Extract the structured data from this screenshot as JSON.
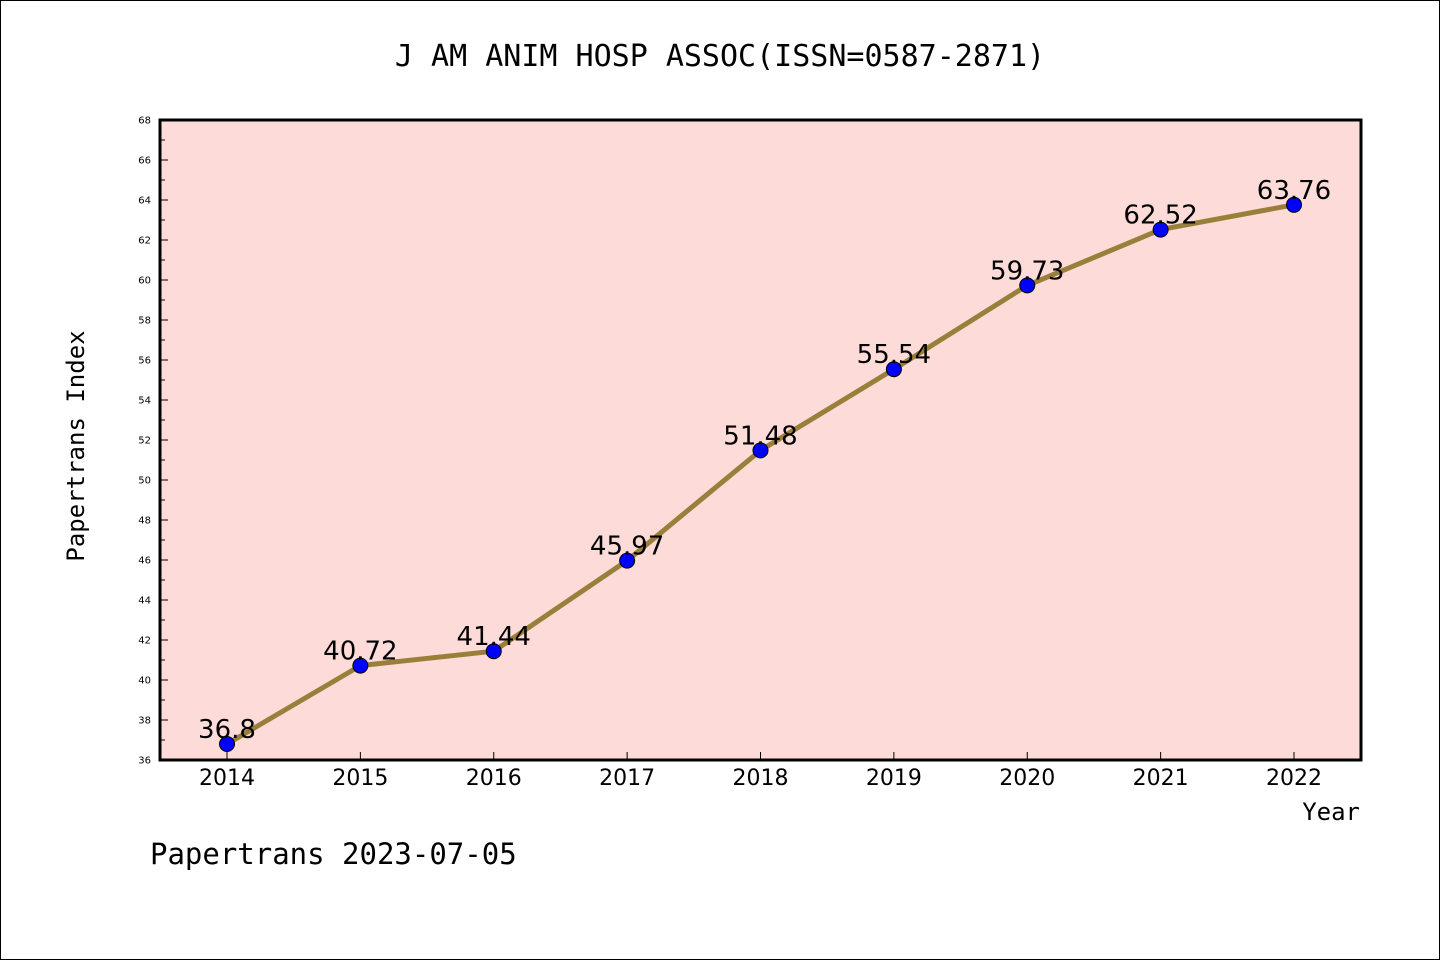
{
  "chart_data": {
    "type": "line",
    "title": "J AM ANIM HOSP ASSOC(ISSN=0587-2871)",
    "xlabel": "Year",
    "ylabel": "Papertrans Index",
    "categories": [
      "2014",
      "2015",
      "2016",
      "2017",
      "2018",
      "2019",
      "2020",
      "2021",
      "2022"
    ],
    "series": [
      {
        "values": [
          36.8,
          40.72,
          41.44,
          45.97,
          51.48,
          55.54,
          59.73,
          62.52,
          63.76
        ],
        "labels": [
          "36.8",
          "40.72",
          "41.44",
          "45.97",
          "51.48",
          "55.54",
          "59.73",
          "62.52",
          "63.76"
        ]
      }
    ],
    "ylim": [
      36,
      68
    ],
    "yticks": [
      "36",
      "38",
      "40",
      "42",
      "44",
      "46",
      "48",
      "50",
      "52",
      "54",
      "56",
      "58",
      "60",
      "62",
      "64",
      "66",
      "68"
    ],
    "grid": false,
    "colors": {
      "plot_background": "#fddbd8",
      "line": "#9a7f3a",
      "marker": "#0000ff",
      "frame": "#000000"
    }
  },
  "footer": "Papertrans 2023-07-05"
}
